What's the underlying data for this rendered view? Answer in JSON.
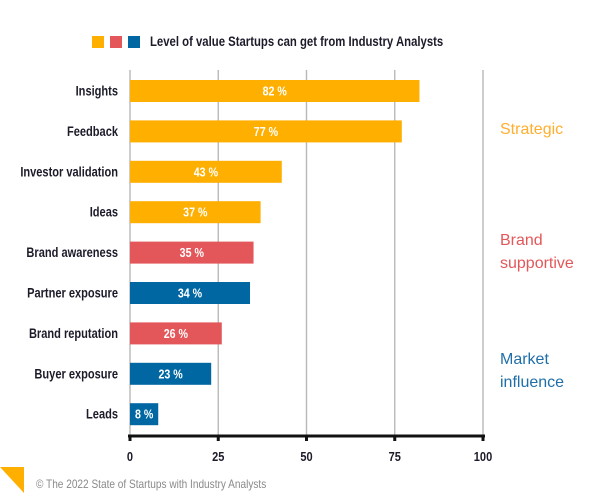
{
  "legend": {
    "colors": [
      "#FFAF00",
      "#E3575A",
      "#0067A3"
    ],
    "title": "Level of value Startups can get from Industry Analysts"
  },
  "chart_data": {
    "type": "bar",
    "orientation": "horizontal",
    "title": "Level of value Startups can get from Industry Analysts",
    "xlabel": "",
    "ylabel": "",
    "categories": [
      "Insights",
      "Feedback",
      "Investor validation",
      "Ideas",
      "Brand awareness",
      "Partner exposure",
      "Brand reputation",
      "Buyer exposure",
      "Leads"
    ],
    "values": [
      82,
      77,
      43,
      37,
      35,
      34,
      26,
      23,
      8
    ],
    "value_labels": [
      "82 %",
      "77 %",
      "43 %",
      "37 %",
      "35 %",
      "34 %",
      "26 %",
      "23 %",
      "8 %"
    ],
    "groups": [
      "Strategic",
      "Strategic",
      "Strategic",
      "Strategic",
      "Brand supportive",
      "Market influence",
      "Brand supportive",
      "Market influence",
      "Market influence"
    ],
    "group_colors": {
      "Strategic": "#FFAF00",
      "Brand supportive": "#E3575A",
      "Market influence": "#0067A3"
    },
    "xlim": [
      0,
      100
    ],
    "xticks": [
      0,
      25,
      50,
      75,
      100
    ],
    "xtick_labels": [
      "0",
      "25",
      "50",
      "75",
      "100"
    ],
    "grid": true,
    "legend": "top-left"
  },
  "group_labels": [
    {
      "lines": [
        "Strategic"
      ],
      "color": "#FFAE2E"
    },
    {
      "lines": [
        "Brand",
        "supportive"
      ],
      "color": "#E3575A"
    },
    {
      "lines": [
        "Market",
        "influence"
      ],
      "color": "#1F6EA8"
    }
  ],
  "footer": {
    "text": "© The 2022 State of Startups with Industry Analysts",
    "corner_color": "#FFAF00"
  }
}
